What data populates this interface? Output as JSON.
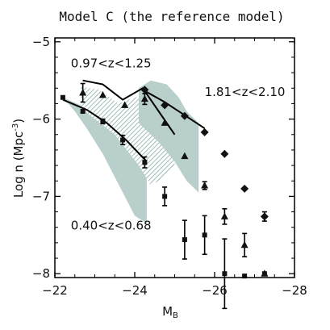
{
  "chart_data": {
    "type": "scatter",
    "title": "Model C (the reference model)",
    "xlabel": "M",
    "xlabel_sub": "B",
    "ylabel": "Log n (Mpc",
    "ylabel_sup": "-3",
    "ylabel_close": ")",
    "xlim": [
      -22,
      -28
    ],
    "ylim": [
      -8.05,
      -4.95
    ],
    "xticks": [
      -22,
      -24,
      -26,
      -28
    ],
    "xtick_labels": [
      "−22",
      "−24",
      "−26",
      "−28"
    ],
    "yticks": [
      -5,
      -6,
      -7,
      -8
    ],
    "ytick_labels": [
      "−5",
      "−6",
      "−7",
      "−8"
    ],
    "grid": false,
    "annotations": [
      {
        "text": "0.97<z<1.25",
        "x": -22.4,
        "y": -5.33
      },
      {
        "text": "1.81<z<2.10",
        "x": -25.75,
        "y": -5.7
      },
      {
        "text": "0.40<z<0.68",
        "x": -22.4,
        "y": -7.43
      }
    ],
    "bands": [
      {
        "name": "0.40<z<0.68",
        "style": "solid",
        "color": "#b9cfcb",
        "upper": [
          [
            -22.2,
            -5.72
          ],
          [
            -23,
            -5.9
          ],
          [
            -23.6,
            -6.12
          ],
          [
            -24.1,
            -6.3
          ],
          [
            -24.3,
            -6.5
          ],
          [
            -24.3,
            -7.05
          ]
        ],
        "lower": [
          [
            -22.2,
            -5.72
          ],
          [
            -22.5,
            -5.9
          ],
          [
            -22.8,
            -6.12
          ],
          [
            -23.2,
            -6.45
          ],
          [
            -23.6,
            -6.85
          ],
          [
            -24.0,
            -7.25
          ],
          [
            -24.3,
            -7.35
          ]
        ]
      },
      {
        "name": "0.97<z<1.25",
        "style": "hatched",
        "color": "#c5d6d3",
        "upper": [
          [
            -22.65,
            -5.58
          ],
          [
            -23.1,
            -5.62
          ],
          [
            -23.6,
            -5.8
          ],
          [
            -24.0,
            -5.72
          ],
          [
            -24.5,
            -5.68
          ],
          [
            -24.8,
            -5.9
          ],
          [
            -25.0,
            -6.3
          ]
        ],
        "lower": [
          [
            -22.65,
            -5.85
          ],
          [
            -23.0,
            -6.0
          ],
          [
            -23.5,
            -6.2
          ],
          [
            -23.8,
            -6.4
          ],
          [
            -24.1,
            -6.6
          ],
          [
            -24.4,
            -6.85
          ],
          [
            -24.6,
            -6.8
          ],
          [
            -25.0,
            -6.6
          ]
        ]
      },
      {
        "name": "1.81<z<2.10",
        "style": "solid",
        "color": "#b9cfcb",
        "upper": [
          [
            -24.1,
            -5.6
          ],
          [
            -24.4,
            -5.5
          ],
          [
            -24.8,
            -5.55
          ],
          [
            -25.1,
            -5.72
          ],
          [
            -25.3,
            -5.9
          ],
          [
            -25.6,
            -6.05
          ]
        ],
        "lower": [
          [
            -24.1,
            -6.05
          ],
          [
            -24.6,
            -6.3
          ],
          [
            -25.0,
            -6.55
          ],
          [
            -25.3,
            -6.8
          ],
          [
            -25.6,
            -6.95
          ]
        ]
      }
    ],
    "series": [
      {
        "name": "0.40<z<0.68",
        "marker": "square",
        "points": [
          {
            "x": -22.2,
            "y": -5.72,
            "err": 0.0
          },
          {
            "x": -22.7,
            "y": -5.9,
            "err": 0.0
          },
          {
            "x": -23.2,
            "y": -6.03,
            "err": 0.03
          },
          {
            "x": -23.7,
            "y": -6.27,
            "err": 0.06
          },
          {
            "x": -24.25,
            "y": -6.56,
            "err": 0.07
          },
          {
            "x": -24.75,
            "y": -7.0,
            "err": 0.12
          },
          {
            "x": -25.25,
            "y": -7.56,
            "err": 0.25
          },
          {
            "x": -25.75,
            "y": -7.5,
            "err": 0.25
          },
          {
            "x": -26.25,
            "y": -8.0,
            "err": 0.45
          },
          {
            "x": -26.75,
            "y": -8.03,
            "err": 0.0
          },
          {
            "x": -27.25,
            "y": -8.0,
            "err": 0.0
          }
        ],
        "model": [
          [
            -22.2,
            -5.75
          ],
          [
            -22.8,
            -5.88
          ],
          [
            -23.3,
            -6.05
          ],
          [
            -23.8,
            -6.28
          ],
          [
            -24.3,
            -6.55
          ]
        ]
      },
      {
        "name": "0.97<z<1.25",
        "marker": "triangle",
        "points": [
          {
            "x": -22.7,
            "y": -5.66,
            "err": 0.12
          },
          {
            "x": -23.2,
            "y": -5.69,
            "err": 0.0
          },
          {
            "x": -23.75,
            "y": -5.82,
            "err": 0.0
          },
          {
            "x": -24.25,
            "y": -5.74,
            "err": 0.07
          },
          {
            "x": -24.75,
            "y": -6.05,
            "err": 0.0
          },
          {
            "x": -25.25,
            "y": -6.48,
            "err": 0.0
          },
          {
            "x": -25.75,
            "y": -6.86,
            "err": 0.05
          },
          {
            "x": -26.25,
            "y": -7.26,
            "err": 0.1
          },
          {
            "x": -26.75,
            "y": -7.63,
            "err": 0.15
          },
          {
            "x": -27.25,
            "y": -8.0,
            "err": 0.0
          }
        ],
        "model": [
          [
            -22.7,
            -5.5
          ],
          [
            -23.2,
            -5.55
          ],
          [
            -23.7,
            -5.75
          ],
          [
            -24.2,
            -5.6
          ],
          [
            -24.6,
            -5.9
          ],
          [
            -25.0,
            -6.2
          ]
        ]
      },
      {
        "name": "1.81<z<2.10",
        "marker": "diamond",
        "points": [
          {
            "x": -24.25,
            "y": -5.62,
            "err": 0.0
          },
          {
            "x": -24.75,
            "y": -5.82,
            "err": 0.0
          },
          {
            "x": -25.25,
            "y": -5.96,
            "err": 0.0
          },
          {
            "x": -25.75,
            "y": -6.17,
            "err": 0.0
          },
          {
            "x": -26.25,
            "y": -6.45,
            "err": 0.0
          },
          {
            "x": -26.75,
            "y": -6.9,
            "err": 0.0
          },
          {
            "x": -27.25,
            "y": -7.26,
            "err": 0.06
          }
        ],
        "model": [
          [
            -24.2,
            -5.62
          ],
          [
            -24.75,
            -5.78
          ],
          [
            -25.25,
            -5.95
          ],
          [
            -25.75,
            -6.12
          ]
        ]
      }
    ]
  }
}
